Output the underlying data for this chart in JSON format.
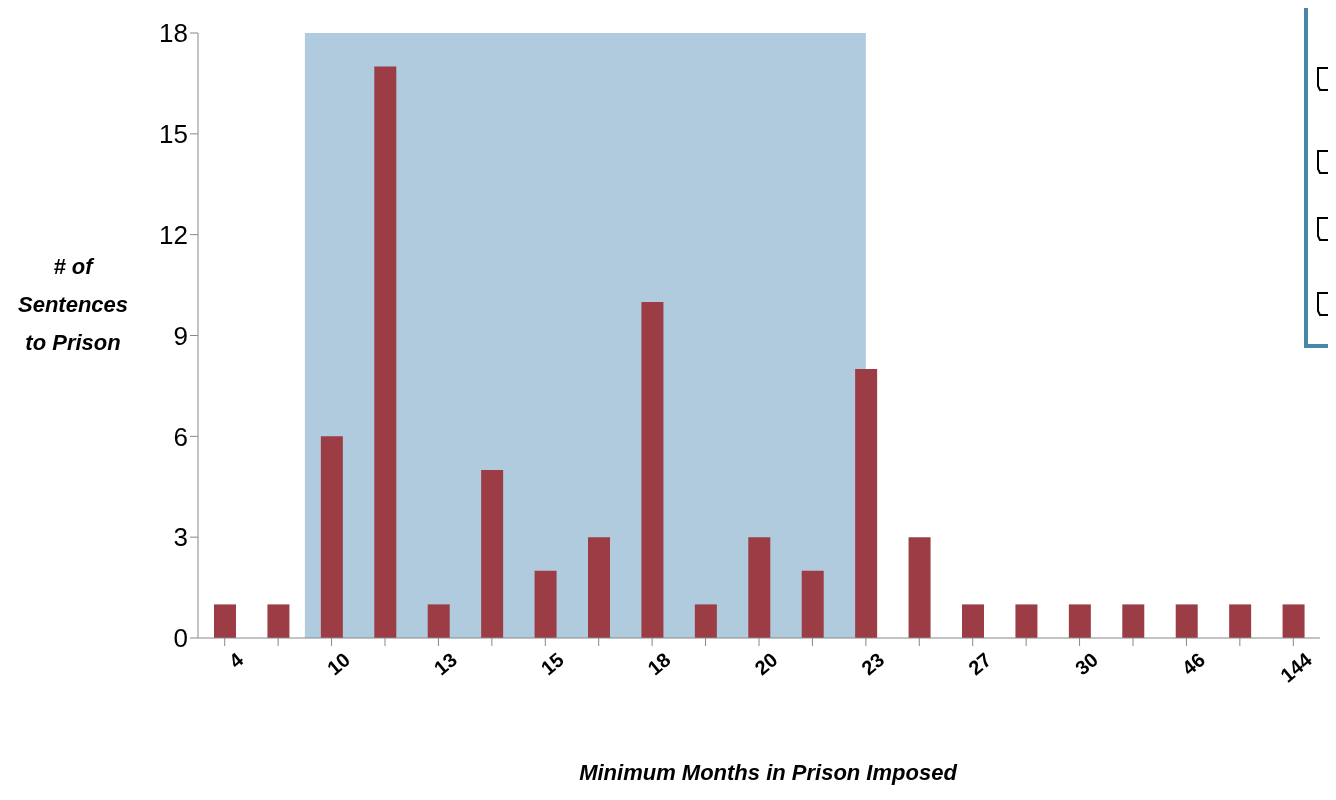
{
  "chart_data": {
    "type": "bar",
    "xlabel": "Minimum Months in Prison Imposed",
    "ylabel": "# of Sentences to Prison",
    "categories": [
      "4",
      null,
      "10",
      null,
      "13",
      null,
      "15",
      null,
      "18",
      null,
      "20",
      null,
      "23",
      null,
      "27",
      null,
      "30",
      null,
      "46",
      null,
      "144"
    ],
    "values": [
      1,
      1,
      6,
      17,
      1,
      5,
      2,
      3,
      10,
      1,
      3,
      2,
      8,
      3,
      1,
      1,
      1,
      1,
      1,
      1,
      1
    ],
    "color": "#9c3d46",
    "ylim": [
      0,
      18
    ],
    "yticks": [
      0,
      3,
      6,
      9,
      12,
      15,
      18
    ],
    "bands": [
      {
        "axis": "x",
        "from": "10",
        "to": "23",
        "color": "#b0cbdd"
      }
    ]
  }
}
